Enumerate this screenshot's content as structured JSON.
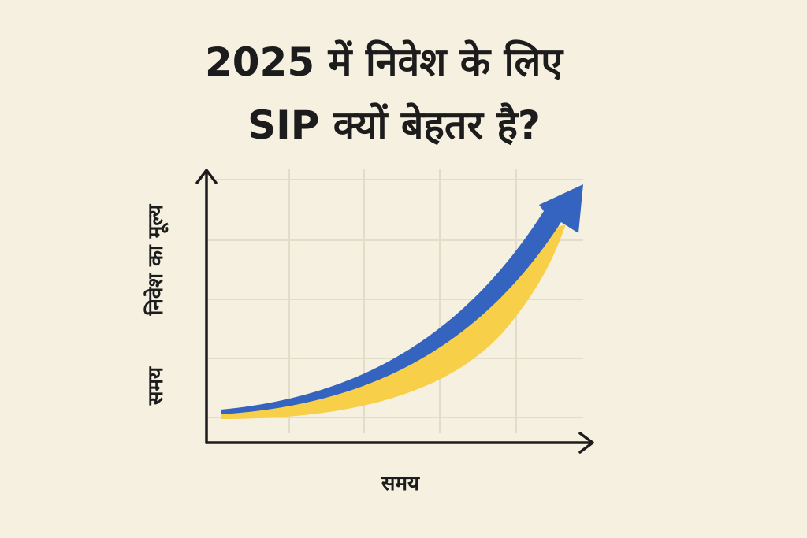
{
  "header": {
    "title_line_1": "2025 में निवेश के लिए",
    "title_line_2": "SIP क्यों बेहतर है?"
  },
  "figure": {
    "y_axis_label_upper": "निवेश का मूल्य",
    "y_axis_label_lower": "समय",
    "x_axis_label": "समय"
  }
}
